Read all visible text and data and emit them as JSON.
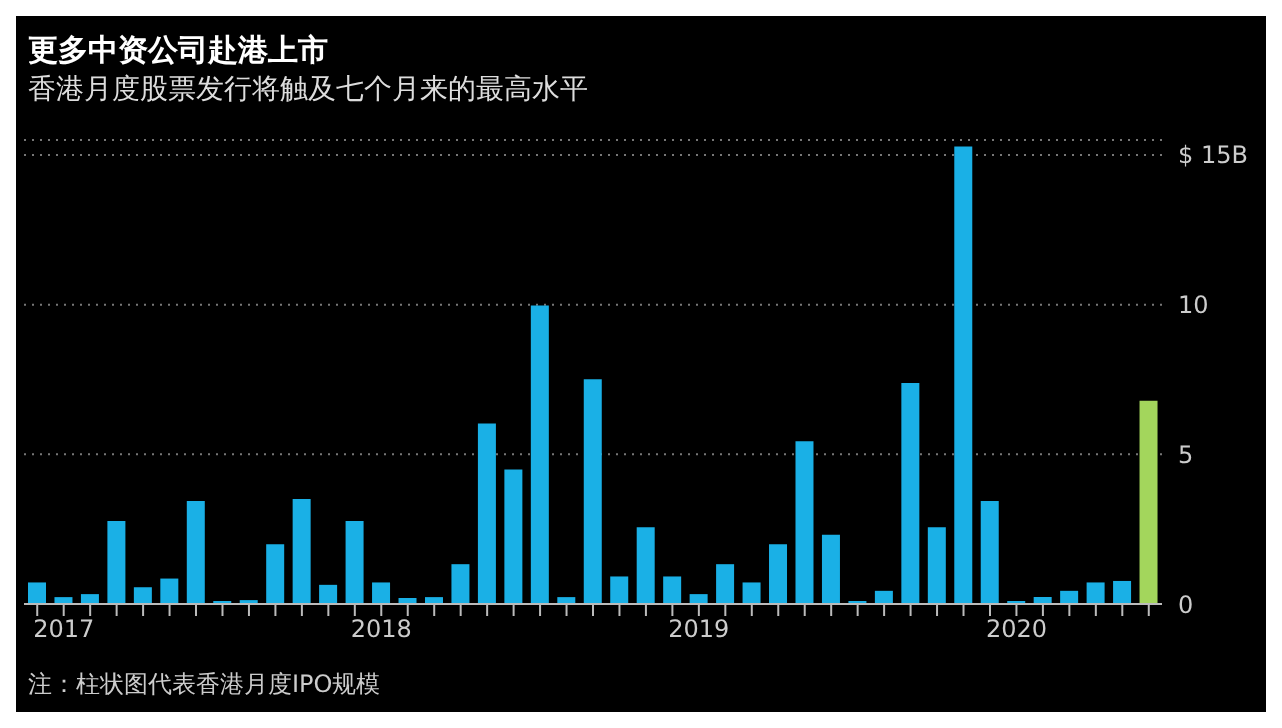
{
  "chart_data": {
    "type": "bar",
    "title": "更多中资公司赴港上市",
    "subtitle": "香港月度股票发行将触及七个月来的最高水平",
    "categories": [
      null,
      "2017",
      null,
      null,
      null,
      null,
      null,
      null,
      null,
      null,
      null,
      null,
      null,
      "2018",
      null,
      null,
      null,
      null,
      null,
      null,
      null,
      null,
      null,
      null,
      null,
      "2019",
      null,
      null,
      null,
      null,
      null,
      null,
      null,
      null,
      null,
      null,
      null,
      "2020",
      null,
      null,
      null,
      null,
      null
    ],
    "values": [
      0.72,
      0.23,
      0.33,
      2.77,
      0.56,
      0.85,
      3.44,
      0.1,
      0.13,
      2.0,
      3.51,
      0.64,
      2.77,
      0.72,
      0.2,
      0.23,
      1.33,
      6.03,
      4.49,
      9.97,
      0.23,
      7.51,
      0.92,
      2.56,
      0.92,
      0.33,
      1.33,
      0.72,
      2.0,
      5.44,
      2.31,
      0.1,
      0.44,
      7.38,
      2.56,
      15.28,
      3.44,
      0.1,
      0.23,
      0.44,
      0.72,
      0.77,
      6.79
    ],
    "colors": [
      "#1ab0e6",
      "#1ab0e6",
      "#1ab0e6",
      "#1ab0e6",
      "#1ab0e6",
      "#1ab0e6",
      "#1ab0e6",
      "#1ab0e6",
      "#1ab0e6",
      "#1ab0e6",
      "#1ab0e6",
      "#1ab0e6",
      "#1ab0e6",
      "#1ab0e6",
      "#1ab0e6",
      "#1ab0e6",
      "#1ab0e6",
      "#1ab0e6",
      "#1ab0e6",
      "#1ab0e6",
      "#1ab0e6",
      "#1ab0e6",
      "#1ab0e6",
      "#1ab0e6",
      "#1ab0e6",
      "#1ab0e6",
      "#1ab0e6",
      "#1ab0e6",
      "#1ab0e6",
      "#1ab0e6",
      "#1ab0e6",
      "#1ab0e6",
      "#1ab0e6",
      "#1ab0e6",
      "#1ab0e6",
      "#1ab0e6",
      "#1ab0e6",
      "#1ab0e6",
      "#1ab0e6",
      "#1ab0e6",
      "#1ab0e6",
      "#1ab0e6",
      "#a3d65c"
    ],
    "ylim": [
      0,
      15.5
    ],
    "yticks": [
      0,
      5,
      10,
      {
        "value": 15,
        "label": "$ 15B"
      }
    ],
    "grid": "y",
    "legend": false,
    "annotations": [
      "注：柱状图代表香港月度IPO规模"
    ]
  }
}
